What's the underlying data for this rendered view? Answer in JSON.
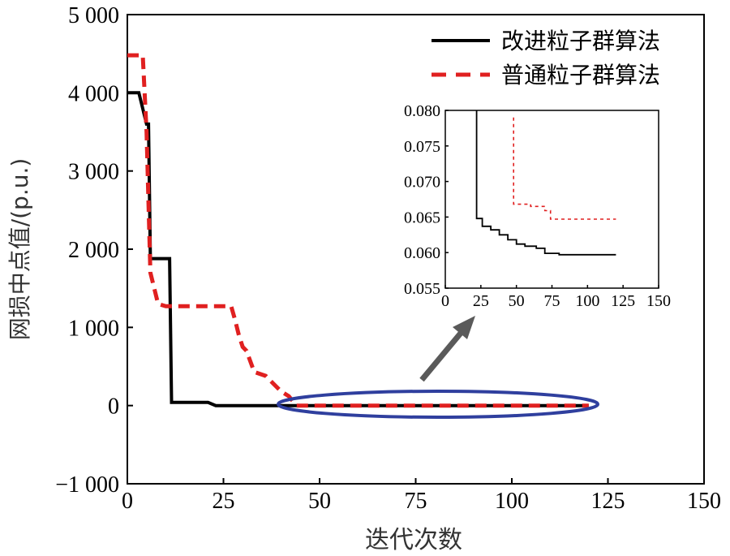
{
  "chart_data": {
    "type": "line",
    "xlabel": "迭代次数",
    "ylabel": "网损中点值/(p.u.)",
    "xlim": [
      0,
      150
    ],
    "ylim": [
      -1000,
      5000
    ],
    "x_ticks": [
      0,
      25,
      50,
      75,
      100,
      125,
      150
    ],
    "x_tick_labels": [
      "0",
      "25",
      "50",
      "75",
      "100",
      "125",
      "150"
    ],
    "y_ticks": [
      -1000,
      0,
      1000,
      2000,
      3000,
      4000,
      5000
    ],
    "y_tick_labels": [
      "−1 000",
      "0",
      "1 000",
      "2 000",
      "3 000",
      "4 000",
      "5 000"
    ],
    "grid": false,
    "legend": "top-right",
    "series": [
      {
        "name": "改进粒子群算法",
        "color": "#000000",
        "style": "solid",
        "points": [
          [
            0,
            4000
          ],
          [
            3,
            4000
          ],
          [
            5,
            3600
          ],
          [
            5.5,
            3600
          ],
          [
            6,
            1880
          ],
          [
            11,
            1880
          ],
          [
            11.5,
            40
          ],
          [
            21,
            40
          ],
          [
            23,
            0
          ],
          [
            120,
            0
          ]
        ]
      },
      {
        "name": "普通粒子群算法",
        "color": "#e02020",
        "style": "dashed",
        "points": [
          [
            0,
            4480
          ],
          [
            4,
            4480
          ],
          [
            5,
            3500
          ],
          [
            6,
            1700
          ],
          [
            8,
            1300
          ],
          [
            10,
            1270
          ],
          [
            27,
            1270
          ],
          [
            28,
            1100
          ],
          [
            29,
            900
          ],
          [
            30,
            750
          ],
          [
            31,
            700
          ],
          [
            33,
            430
          ],
          [
            36,
            380
          ],
          [
            38,
            280
          ],
          [
            40,
            180
          ],
          [
            42,
            120
          ],
          [
            44,
            0
          ],
          [
            120,
            0
          ]
        ]
      }
    ],
    "annotations": {
      "ellipse_center": [
        82,
        0
      ],
      "arrow_direction": "up-right"
    },
    "inset": {
      "type": "line",
      "xlim": [
        0,
        150
      ],
      "ylim": [
        0.055,
        0.08
      ],
      "x_ticks": [
        0,
        25,
        50,
        75,
        100,
        125,
        150
      ],
      "x_tick_labels": [
        "0",
        "25",
        "50",
        "75",
        "100",
        "125",
        "150"
      ],
      "y_ticks": [
        0.055,
        0.06,
        0.065,
        0.07,
        0.075,
        0.08
      ],
      "y_tick_labels": [
        "0.055",
        "0.060",
        "0.065",
        "0.070",
        "0.075",
        "0.080"
      ],
      "series": [
        {
          "name": "改进粒子群算法",
          "color": "#000000",
          "style": "solid",
          "points": [
            [
              22,
              0.08
            ],
            [
              22,
              0.0648
            ],
            [
              26,
              0.0648
            ],
            [
              26,
              0.0637
            ],
            [
              32,
              0.0637
            ],
            [
              32,
              0.0632
            ],
            [
              38,
              0.0632
            ],
            [
              38,
              0.0625
            ],
            [
              44,
              0.0625
            ],
            [
              44,
              0.0618
            ],
            [
              50,
              0.0618
            ],
            [
              50,
              0.0612
            ],
            [
              56,
              0.0612
            ],
            [
              56,
              0.0609
            ],
            [
              64,
              0.0609
            ],
            [
              64,
              0.0606
            ],
            [
              70,
              0.0606
            ],
            [
              70,
              0.0599
            ],
            [
              80,
              0.0599
            ],
            [
              80,
              0.0597
            ],
            [
              120,
              0.0597
            ]
          ]
        },
        {
          "name": "普通粒子群算法",
          "color": "#e02020",
          "style": "dashed",
          "points": [
            [
              48,
              0.079
            ],
            [
              48,
              0.0668
            ],
            [
              60,
              0.0668
            ],
            [
              60,
              0.0665
            ],
            [
              70,
              0.0665
            ],
            [
              70,
              0.0659
            ],
            [
              74,
              0.0659
            ],
            [
              74,
              0.0647
            ],
            [
              120,
              0.0647
            ]
          ]
        }
      ]
    }
  }
}
